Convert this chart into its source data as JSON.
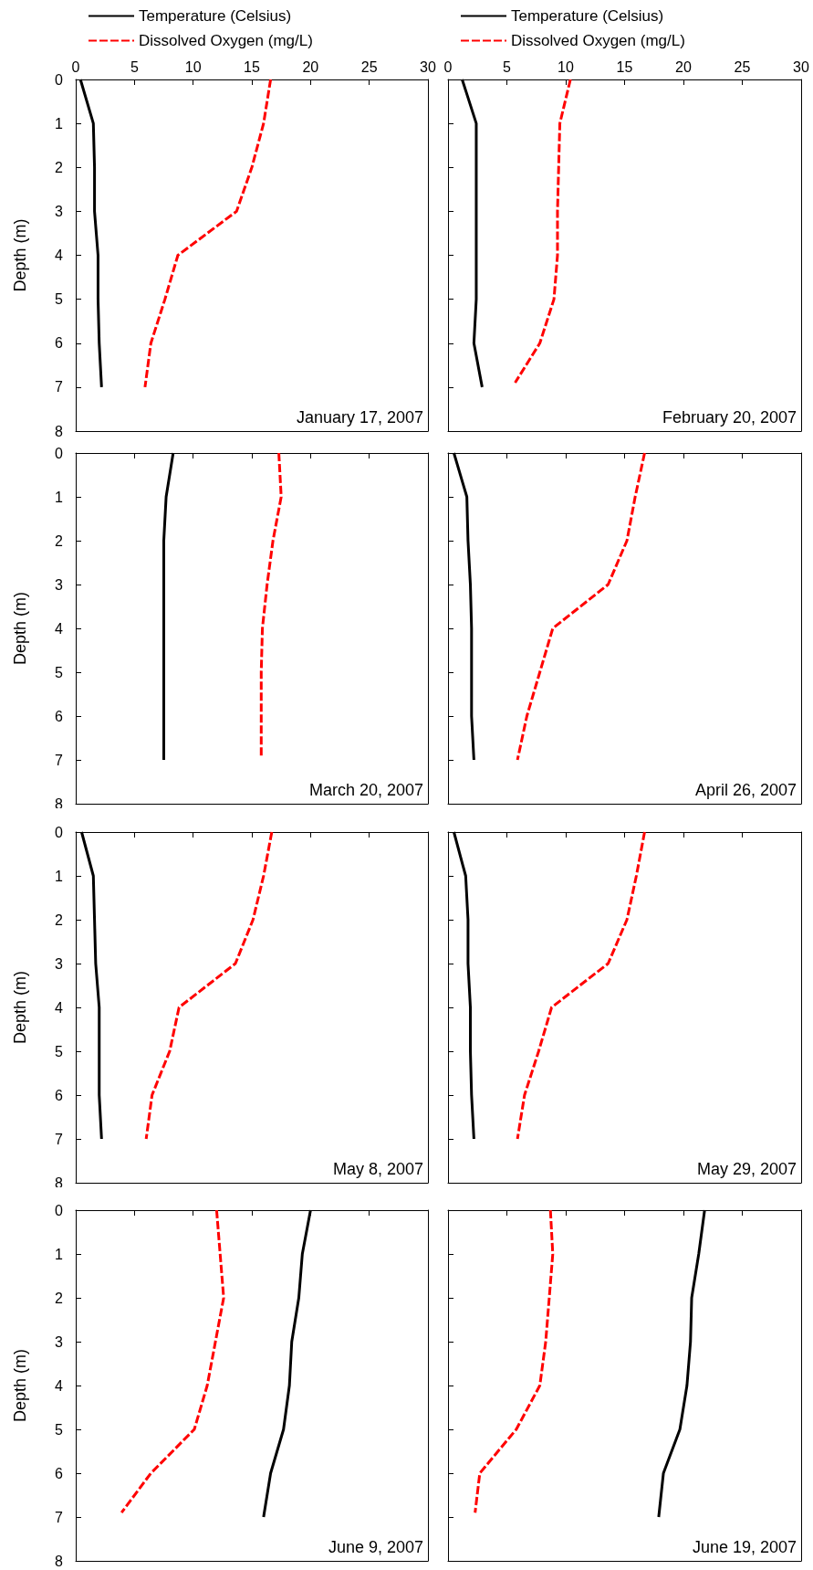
{
  "chart_data": [
    {
      "type": "line",
      "ylabel": "Depth (m)",
      "annotations": [
        "January 17, 2007"
      ],
      "xlim": [
        0,
        30
      ],
      "xticks": [
        0,
        5,
        10,
        15,
        20,
        25,
        30
      ],
      "ylim": [
        8,
        0
      ],
      "yticks": [
        0,
        1,
        2,
        3,
        4,
        5,
        6,
        7,
        8
      ],
      "legend": "top",
      "marker": "none",
      "series": [
        {
          "name": "Temperature (Celsius)",
          "color": "#000000",
          "line_style": "solid",
          "x": [
            0.4,
            1.5,
            1.6,
            1.6,
            1.9,
            1.9,
            2.0,
            2.2
          ],
          "values": [
            0,
            1,
            2,
            3,
            4,
            5,
            6,
            7
          ]
        },
        {
          "name": "Dissolved Oxygen (mg/L)",
          "color": "#ff0000",
          "line_style": "dashed",
          "x": [
            16.6,
            16.0,
            15.0,
            13.7,
            8.7,
            7.6,
            6.4,
            5.9
          ],
          "values": [
            0,
            1,
            2,
            3,
            4,
            5,
            6,
            7
          ]
        }
      ]
    },
    {
      "type": "line",
      "annotations": [
        "February 20, 2007"
      ],
      "xlim": [
        0,
        30
      ],
      "xticks": [
        0,
        5,
        10,
        15,
        20,
        25,
        30
      ],
      "ylim": [
        8,
        0
      ],
      "yticks": [
        0,
        1,
        2,
        3,
        4,
        5,
        6,
        7,
        8
      ],
      "tick_labels": "x",
      "legend": "top",
      "marker": "none",
      "series": [
        {
          "name": "Temperature (Celsius)",
          "color": "#000000",
          "line_style": "solid",
          "x": [
            1.2,
            2.4,
            2.4,
            2.4,
            2.4,
            2.4,
            2.2,
            2.9
          ],
          "values": [
            0,
            1,
            2,
            3,
            4,
            5,
            6,
            7
          ]
        },
        {
          "name": "Dissolved Oxygen (mg/L)",
          "color": "#ff0000",
          "line_style": "dashed",
          "x": [
            10.4,
            9.5,
            9.4,
            9.3,
            9.3,
            9.0,
            7.8,
            5.7
          ],
          "values": [
            0,
            1,
            2,
            3,
            4,
            5,
            6,
            6.9
          ]
        }
      ]
    },
    {
      "type": "line",
      "ylabel": "Depth (m)",
      "annotations": [
        "March 20, 2007"
      ],
      "xlim": [
        0,
        30
      ],
      "xticks": [
        0,
        5,
        10,
        15,
        20,
        25,
        30
      ],
      "ylim": [
        8,
        0
      ],
      "yticks": [
        0,
        1,
        2,
        3,
        4,
        5,
        6,
        7,
        8
      ],
      "tick_labels": "y",
      "marker": "none",
      "series": [
        {
          "color": "#000000",
          "line_style": "solid",
          "x": [
            8.3,
            7.7,
            7.5,
            7.5,
            7.5,
            7.5,
            7.5,
            7.5
          ],
          "values": [
            0,
            1,
            2,
            3,
            4,
            5,
            6,
            7
          ]
        },
        {
          "color": "#ff0000",
          "line_style": "dashed",
          "x": [
            17.3,
            17.5,
            16.8,
            16.3,
            15.9,
            15.8,
            15.8,
            15.8
          ],
          "values": [
            0,
            1,
            2,
            3,
            4,
            5,
            6,
            6.9
          ]
        }
      ]
    },
    {
      "type": "line",
      "annotations": [
        "April 26, 2007"
      ],
      "xlim": [
        0,
        30
      ],
      "xticks": [
        0,
        5,
        10,
        15,
        20,
        25,
        30
      ],
      "ylim": [
        8,
        0
      ],
      "yticks": [
        0,
        1,
        2,
        3,
        4,
        5,
        6,
        7,
        8
      ],
      "tick_labels": false,
      "marker": "none",
      "series": [
        {
          "color": "#000000",
          "line_style": "solid",
          "x": [
            0.5,
            1.6,
            1.7,
            1.9,
            2.0,
            2.0,
            2.0,
            2.2
          ],
          "values": [
            0,
            1,
            2,
            3,
            4,
            5,
            6,
            7
          ]
        },
        {
          "color": "#ff0000",
          "line_style": "dashed",
          "x": [
            16.7,
            15.9,
            15.2,
            13.6,
            8.9,
            7.8,
            6.7,
            5.9
          ],
          "values": [
            0,
            1,
            2,
            3,
            4,
            5,
            6,
            7
          ]
        }
      ]
    },
    {
      "type": "line",
      "ylabel": "Depth (m)",
      "annotations": [
        "May 8, 2007"
      ],
      "xlim": [
        0,
        30
      ],
      "xticks": [
        0,
        5,
        10,
        15,
        20,
        25,
        30
      ],
      "ylim": [
        8,
        0
      ],
      "yticks": [
        0,
        1,
        2,
        3,
        4,
        5,
        6,
        7,
        8
      ],
      "tick_labels": "y",
      "marker": "none",
      "series": [
        {
          "color": "#000000",
          "line_style": "solid",
          "x": [
            0.5,
            1.5,
            1.6,
            1.7,
            2.0,
            2.0,
            2.0,
            2.2
          ],
          "values": [
            0,
            1,
            2,
            3,
            4,
            5,
            6,
            7
          ]
        },
        {
          "color": "#ff0000",
          "line_style": "dashed",
          "x": [
            16.7,
            16.0,
            15.1,
            13.6,
            8.8,
            8.0,
            6.5,
            6.0
          ],
          "values": [
            0,
            1,
            2,
            3,
            4,
            5,
            6,
            7
          ]
        }
      ]
    },
    {
      "type": "line",
      "annotations": [
        "May 29, 2007"
      ],
      "xlim": [
        0,
        30
      ],
      "xticks": [
        0,
        5,
        10,
        15,
        20,
        25,
        30
      ],
      "ylim": [
        8,
        0
      ],
      "yticks": [
        0,
        1,
        2,
        3,
        4,
        5,
        6,
        7,
        8
      ],
      "tick_labels": false,
      "marker": "none",
      "series": [
        {
          "color": "#000000",
          "line_style": "solid",
          "x": [
            0.5,
            1.5,
            1.7,
            1.7,
            1.9,
            1.9,
            2.0,
            2.2
          ],
          "values": [
            0,
            1,
            2,
            3,
            4,
            5,
            6,
            7
          ]
        },
        {
          "color": "#ff0000",
          "line_style": "dashed",
          "x": [
            16.7,
            16.0,
            15.2,
            13.6,
            8.8,
            7.7,
            6.5,
            5.9
          ],
          "values": [
            0,
            1,
            2,
            3,
            4,
            5,
            6,
            7
          ]
        }
      ]
    },
    {
      "type": "line",
      "ylabel": "Depth (m)",
      "annotations": [
        "June 9, 2007"
      ],
      "xlim": [
        0,
        30
      ],
      "xticks": [
        0,
        5,
        10,
        15,
        20,
        25,
        30
      ],
      "ylim": [
        8,
        0
      ],
      "yticks": [
        0,
        1,
        2,
        3,
        4,
        5,
        6,
        7,
        8
      ],
      "tick_labels": "y",
      "marker": "none",
      "series": [
        {
          "color": "#000000",
          "line_style": "solid",
          "x": [
            20.0,
            19.3,
            19.0,
            18.4,
            18.2,
            17.7,
            16.6,
            16.0
          ],
          "values": [
            0,
            1,
            2,
            3,
            4,
            5,
            6,
            7
          ]
        },
        {
          "color": "#ff0000",
          "line_style": "dashed",
          "x": [
            12.0,
            12.3,
            12.6,
            11.9,
            11.2,
            10.1,
            6.4,
            3.9
          ],
          "values": [
            0,
            1,
            2,
            3,
            4,
            5,
            6,
            6.9
          ]
        }
      ]
    },
    {
      "type": "line",
      "annotations": [
        "June 19, 2007"
      ],
      "xlim": [
        0,
        30
      ],
      "xticks": [
        0,
        5,
        10,
        15,
        20,
        25,
        30
      ],
      "ylim": [
        8,
        0
      ],
      "yticks": [
        0,
        1,
        2,
        3,
        4,
        5,
        6,
        7,
        8
      ],
      "tick_labels": false,
      "marker": "none",
      "series": [
        {
          "color": "#000000",
          "line_style": "solid",
          "x": [
            21.8,
            21.3,
            20.7,
            20.6,
            20.3,
            19.7,
            18.3,
            17.9
          ],
          "values": [
            0,
            1,
            2,
            3,
            4,
            5,
            6,
            7
          ]
        },
        {
          "color": "#ff0000",
          "line_style": "dashed",
          "x": [
            8.7,
            8.9,
            8.6,
            8.3,
            7.8,
            5.8,
            2.7,
            2.3
          ],
          "values": [
            0,
            1,
            2,
            3,
            4,
            5,
            6,
            6.9
          ]
        }
      ]
    }
  ]
}
